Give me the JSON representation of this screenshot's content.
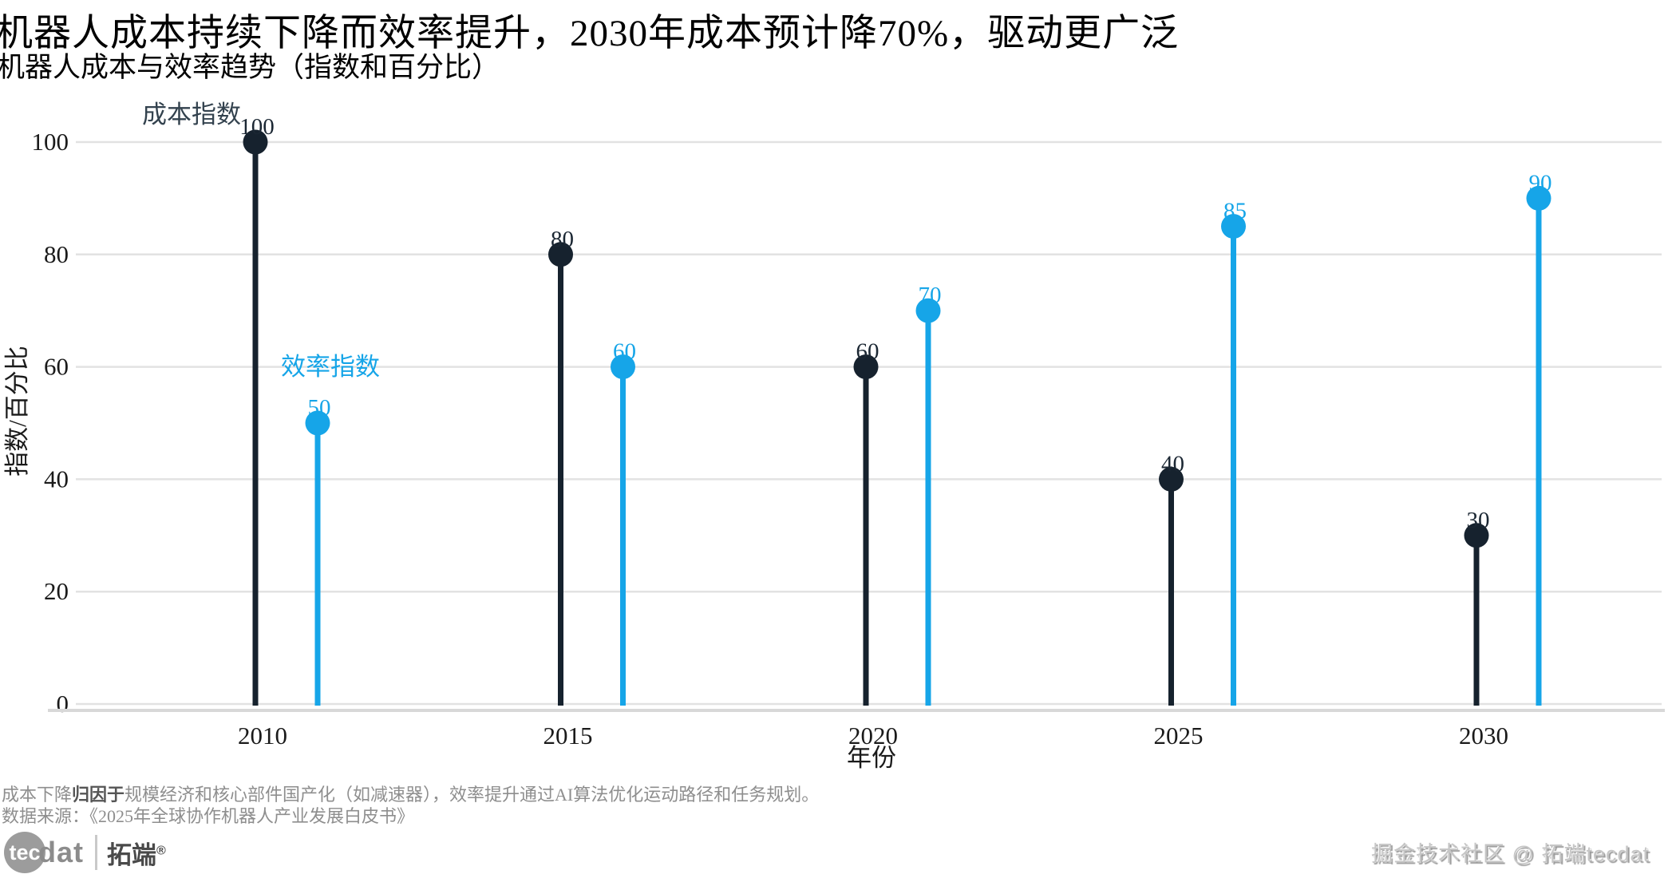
{
  "header": {
    "title": "机器人成本持续下降而效率提升，2030年成本预计降70%，驱动更广泛",
    "subtitle": "机器人成本与效率趋势（指数和百分比）"
  },
  "chart_data": {
    "type": "bar",
    "variant": "lollipop",
    "title": "机器人成本与效率趋势（指数和百分比）",
    "categories": [
      "2010",
      "2015",
      "2020",
      "2025",
      "2030"
    ],
    "series": [
      {
        "key": "cost",
        "name": "成本指数",
        "values": [
          100,
          80,
          60,
          40,
          30
        ],
        "color": "#16222E",
        "label_color": "#1B2733",
        "annotation_color": "#33424E"
      },
      {
        "key": "efficiency",
        "name": "效率指数",
        "values": [
          50,
          60,
          70,
          85,
          90
        ],
        "color": "#16A5E8",
        "label_color": "#16A5E8",
        "annotation_color": "#16A5E8"
      }
    ],
    "xlabel": "年份",
    "ylabel": "指数/百分比",
    "ylim": [
      0,
      100
    ],
    "yticks": [
      0,
      20,
      40,
      60,
      80,
      100
    ],
    "grid": true,
    "legend_position": "inline-annotations",
    "annotations": [
      {
        "series": "cost",
        "text": "成本指数"
      },
      {
        "series": "efficiency",
        "text": "效率指数"
      }
    ],
    "gridline_color": "#E2E2E2",
    "axisline_color": "#D8D8D8",
    "tick_text_color": "#1A1A1A"
  },
  "footer": {
    "note_prefix": "成本下降",
    "note_emphasis": "归因于",
    "note_rest": "规模经济和核心部件国产化（如减速器），效率提升通过AI算法优化运动路径和任务规划。",
    "source": "数据来源：《2025年全球协作机器人产业发展白皮书》",
    "watermark": "掘金技术社区 @ 拓端tecdat",
    "logo": {
      "circle_text": "tec",
      "suffix": "dat",
      "brand": "拓端",
      "reg": "®"
    }
  }
}
